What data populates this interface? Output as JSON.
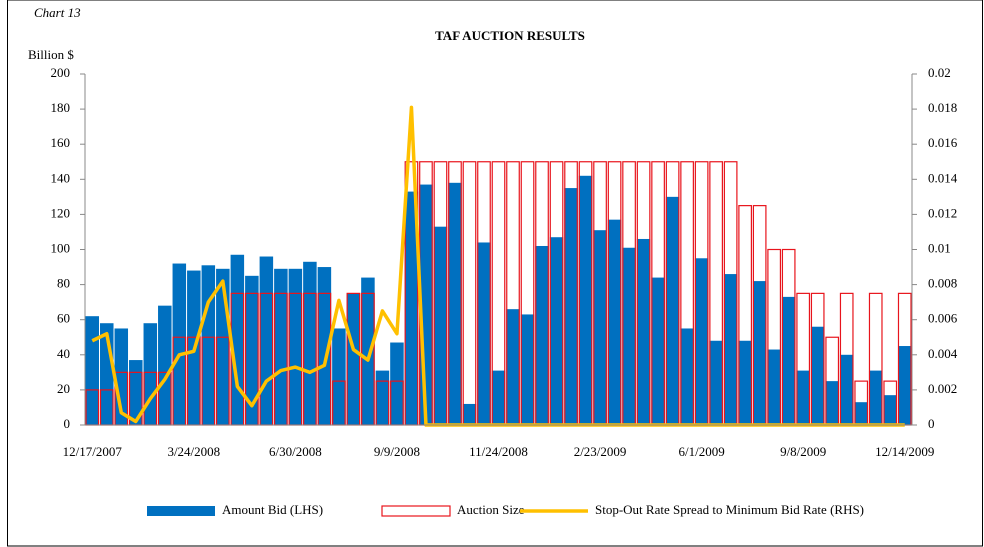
{
  "chart_data": {
    "type": "bar",
    "chart_label": "Chart 13",
    "title": "TAF AUCTION  RESULTS",
    "ylabel": "Billion $",
    "categories": [
      "12/17/2007",
      null,
      null,
      null,
      null,
      null,
      null,
      "3/24/2008",
      null,
      null,
      null,
      null,
      null,
      null,
      "6/30/2008",
      null,
      null,
      null,
      null,
      null,
      null,
      "9/9/2008",
      null,
      null,
      null,
      null,
      null,
      null,
      "11/24/2008",
      null,
      null,
      null,
      null,
      null,
      null,
      "2/23/2009",
      null,
      null,
      null,
      null,
      null,
      null,
      "6/1/2009",
      null,
      null,
      null,
      null,
      null,
      null,
      "9/8/2009",
      null,
      null,
      null,
      null,
      null,
      null,
      "12/14/2009"
    ],
    "series": [
      {
        "name": "Amount Bid (LHS)",
        "type": "bar",
        "color": "#0070c0",
        "values": [
          62,
          58,
          55,
          37,
          58,
          68,
          92,
          88,
          91,
          89,
          97,
          85,
          96,
          89,
          89,
          93,
          90,
          55,
          75,
          84,
          31,
          47,
          133,
          137,
          113,
          138,
          12,
          104,
          31,
          66,
          63,
          102,
          107,
          135,
          142,
          111,
          117,
          101,
          106,
          84,
          130,
          55,
          95,
          48,
          86,
          48,
          82,
          43,
          73,
          31,
          56,
          25,
          40,
          13,
          31,
          17,
          45
        ]
      },
      {
        "name": "Auction Size",
        "type": "outline",
        "color": "#e8141c",
        "values": [
          20,
          20,
          30,
          30,
          30,
          30,
          50,
          50,
          50,
          50,
          75,
          75,
          75,
          75,
          75,
          75,
          75,
          25,
          75,
          75,
          25,
          25,
          150,
          150,
          150,
          150,
          150,
          150,
          150,
          150,
          150,
          150,
          150,
          150,
          150,
          150,
          150,
          150,
          150,
          150,
          150,
          150,
          150,
          150,
          150,
          125,
          125,
          100,
          100,
          75,
          75,
          50,
          75,
          25,
          75,
          25,
          75
        ]
      },
      {
        "name": "Stop-Out Rate Spread to Minimum Bid Rate (RHS)",
        "type": "line",
        "axis": "y2",
        "color": "#ffc000",
        "values": [
          0.0048,
          0.0052,
          0.0007,
          0.0002,
          0.0015,
          0.0026,
          0.004,
          0.0042,
          0.007,
          0.0082,
          0.0022,
          0.0011,
          0.0025,
          0.0031,
          0.0033,
          0.003,
          0.0034,
          0.0071,
          0.0043,
          0.0037,
          0.0065,
          0.0052,
          0.0181,
          0,
          0,
          0,
          0,
          0,
          0,
          0,
          0,
          0,
          0,
          0,
          0,
          0,
          0,
          0,
          0,
          0,
          0,
          0,
          0,
          0,
          0,
          0,
          0,
          0,
          0,
          0,
          0,
          0,
          0,
          0,
          0,
          0,
          0
        ]
      }
    ],
    "ylim": [
      0,
      200
    ],
    "yticks": [
      0,
      20,
      40,
      60,
      80,
      100,
      120,
      140,
      160,
      180,
      200
    ],
    "y2lim": [
      0,
      0.02
    ],
    "y2ticks": [
      0,
      0.002,
      0.004,
      0.006,
      0.008,
      0.01,
      0.012,
      0.014,
      0.016,
      0.018,
      0.02
    ]
  }
}
